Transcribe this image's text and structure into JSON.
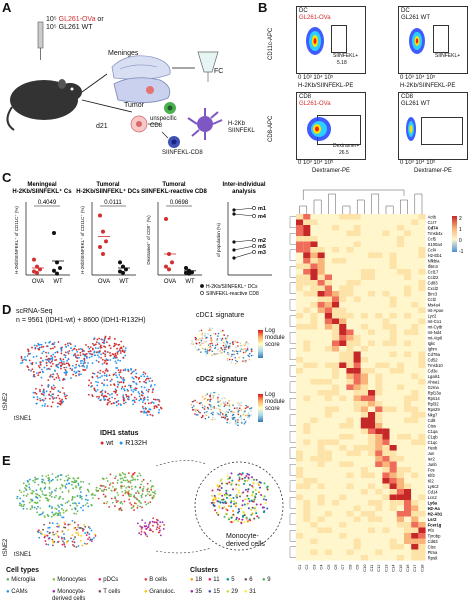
{
  "panelA": {
    "label": "A",
    "injection_line1": "10⁵ GL261-OVa or",
    "injection_line1_prefix": "10",
    "injection_line1_red": "GL261-OVa",
    "injection_line1_suffix": "or",
    "injection_line2": "10⁵ GL261 WT",
    "meninges": "Meninges",
    "tumor": "Tumor",
    "fc": "FC",
    "d21": "d21",
    "unspecific": "unspecific",
    "cd8": "CD8",
    "h2kb": "H-2Kb",
    "siinfekl": "SIINFEKL",
    "siinfekl_cd8": "SIINFEKL-CD8"
  },
  "panelB": {
    "label": "B",
    "plots": [
      {
        "title_top": "DC",
        "title_sub": "GL261-OVa",
        "sub_red": true,
        "gate_label": "SIINFEKL+",
        "gate_value": "5.18",
        "yaxis": "CD11c-APC",
        "xaxis": "H-2Kb/SIINFEKL-PE"
      },
      {
        "title_top": "DC",
        "title_sub": "GL261 WT",
        "sub_red": false,
        "gate_label": "SIINFEKL+",
        "gate_value": "",
        "yaxis": "",
        "xaxis": "H-2Kb/SIINFEKL-PE"
      },
      {
        "title_top": "CD8",
        "title_sub": "GL261-OVa",
        "sub_red": true,
        "gate_label": "Dextramer+",
        "gate_value": "26.5",
        "yaxis": "CD8-APC",
        "xaxis": "Dextramer-PE"
      },
      {
        "title_top": "CD8",
        "title_sub": "GL261 WT",
        "sub_red": false,
        "gate_label": "",
        "gate_value": "",
        "yaxis": "",
        "xaxis": "Dextramer-PE"
      }
    ]
  },
  "panelC": {
    "label": "C",
    "charts": [
      {
        "title1": "Meningeal",
        "title2": "H-2Kb/SIINFEKL⁺ Cs",
        "ylabel": "H-2Kb/SIINFEKL⁺ of CD11C⁺ (%)",
        "pvalue": "0.4049",
        "xcats": [
          "OVA",
          "WT"
        ]
      },
      {
        "title1": "Tumoral",
        "title2": "H-2Kb/SIINFEKL⁺ DCs",
        "ylabel": "H-2Kb/SIINFEKL⁺ of CD11C⁺ (%)",
        "pvalue": "0.0111",
        "xcats": [
          "OVA",
          "WT"
        ]
      },
      {
        "title1": "Tumoral",
        "title2": "SIINFEKL-reactive CD8",
        "ylabel": "Dextramer⁺ of CD8⁺ (%)",
        "pvalue": "0.0698",
        "xcats": [
          "OVA",
          "WT"
        ]
      },
      {
        "title1": "Inter-individual",
        "title2": "analysis",
        "ylabel": "of population (%)",
        "pvalue": "",
        "xcats": []
      }
    ],
    "mice": [
      "m1",
      "m4",
      "m2",
      "m5",
      "m3"
    ],
    "legend": [
      "H-2Kb/SIINFEKL⁺ DCs",
      "SIINFEKL-reactive CD8"
    ]
  },
  "panelD": {
    "label": "D",
    "title": "scRNA-Seq",
    "n_line": "n = 9561 (IDH1-wt) + 8600 (IDH1-R132H)",
    "tsne1": "tSNE1",
    "tsne2": "tSNE2",
    "idh_status": "IDH1 status",
    "wt": "wt",
    "r132h": "R132H",
    "cdc1": "cDC1 signature",
    "cdc2": "cDC2 signature",
    "log": "Log",
    "module": "module",
    "score": "score"
  },
  "panelE": {
    "label": "E",
    "monocyte_label": "Monocyte-\nderived cells",
    "monocyte_label_line1": "Monocyte-",
    "monocyte_label_line2": "derived cells",
    "cell_types_title": "Cell types",
    "cell_types": [
      {
        "name": "Microglia",
        "color": "#5cb85c"
      },
      {
        "name": "Monocytes",
        "color": "#8bc34a"
      },
      {
        "name": "pDCs",
        "color": "#e91e63"
      },
      {
        "name": "B cells",
        "color": "#e53935"
      },
      {
        "name": "CAMs",
        "color": "#2196f3"
      },
      {
        "name": "Monocyte-derived cells",
        "color": "#9c27b0"
      },
      {
        "name": "T cells",
        "color": "#795548"
      },
      {
        "name": "Granuloc.",
        "color": "#ffc107"
      }
    ],
    "clusters_title": "Clusters",
    "clusters": [
      {
        "id": "18",
        "color": "#ff9800"
      },
      {
        "id": "11",
        "color": "#e91e63"
      },
      {
        "id": "5",
        "color": "#009688"
      },
      {
        "id": "6",
        "color": "#795548"
      },
      {
        "id": "9",
        "color": "#4caf50"
      },
      {
        "id": "35",
        "color": "#9c27b0"
      },
      {
        "id": "15",
        "color": "#3f51b5"
      },
      {
        "id": "29",
        "color": "#cddc39"
      },
      {
        "id": "31",
        "color": "#ffeb3b"
      }
    ]
  },
  "heatmap": {
    "genes": [
      "Actb",
      "Ccr7",
      "Cd74",
      "Tmsb4x",
      "Ccl5",
      "S100a4",
      "Ccl4",
      "H2-Eb1",
      "Nfkbia",
      "Ifitm3",
      "Ccl17",
      "Ccl22",
      "Cd83",
      "Cxcl2",
      "Birc3",
      "Ccl2",
      "Ms4a4",
      "mt-Apoe",
      "Lyz2",
      "mt-Co1",
      "mt-Cytb",
      "mt-Nd4",
      "mt-Atp6",
      "Igkc",
      "Ighm",
      "Cd79a",
      "Cd52",
      "Tmsb10",
      "Cd3e",
      "Lgals1",
      "Ahsa1",
      "Gzma",
      "Rpl13a",
      "Rps14",
      "Rpl32",
      "Rps29",
      "Nkg7",
      "Cd9",
      "Ctss",
      "C1qa",
      "C1qb",
      "C1qc",
      "Hexb",
      "Jun",
      "Ier2",
      "Junb",
      "Fos",
      "Klf2",
      "Kl2",
      "Ly6c2",
      "Cd14",
      "Lcn2",
      "Ly6a",
      "H2-Aa",
      "H2-Ab1",
      "Lsr2",
      "Fcer1g",
      "Pf4",
      "Tyrobp",
      "Cd63",
      "Ctsc",
      "Ptma",
      "Rps9"
    ],
    "bold_genes": [
      "Cd74",
      "Ly6a",
      "H2-Aa",
      "H2-Ab1",
      "Lsr2",
      "Fcer1g"
    ],
    "colorbar_ticks": [
      "2",
      "1",
      "0",
      "-1"
    ],
    "values": []
  }
}
